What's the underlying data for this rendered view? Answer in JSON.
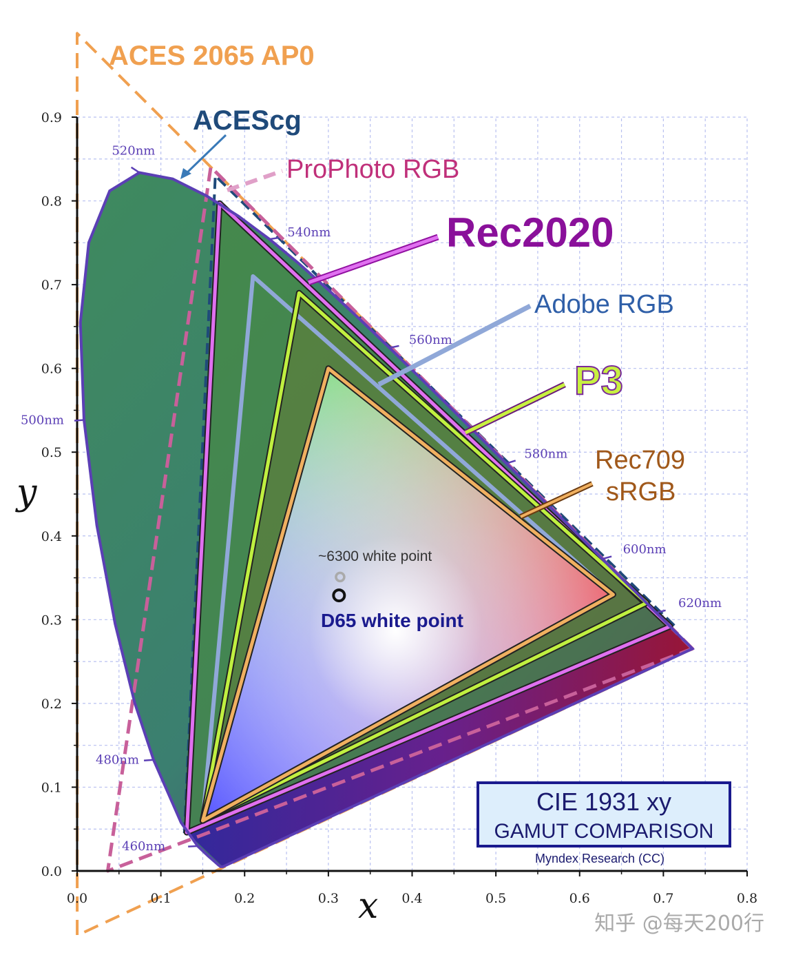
{
  "chart_data": {
    "type": "scatter",
    "title": "CIE 1931 xy",
    "subtitle": "GAMUT COMPARISON",
    "credit": "Myndex Research (CC)",
    "xlabel": "x",
    "ylabel": "y",
    "xlim": [
      0,
      0.8
    ],
    "ylim": [
      0,
      0.9
    ],
    "x_ticks": [
      "0.0",
      "0.1",
      "0.2",
      "0.3",
      "0.4",
      "0.5",
      "0.6",
      "0.7",
      "0.8"
    ],
    "y_ticks": [
      "0.0",
      "0.1",
      "0.2",
      "0.3",
      "0.4",
      "0.5",
      "0.6",
      "0.7",
      "0.8",
      "0.9"
    ],
    "grid": true,
    "spectral_locus": [
      [
        0.1741,
        0.005
      ],
      [
        0.1714,
        0.0051
      ],
      [
        0.1689,
        0.0069
      ],
      [
        0.1644,
        0.0109
      ],
      [
        0.1566,
        0.0177
      ],
      [
        0.144,
        0.0297
      ],
      [
        0.1241,
        0.0578
      ],
      [
        0.0913,
        0.1327
      ],
      [
        0.0687,
        0.2007
      ],
      [
        0.0454,
        0.295
      ],
      [
        0.0235,
        0.4127
      ],
      [
        0.0082,
        0.5384
      ],
      [
        0.0039,
        0.6548
      ],
      [
        0.0139,
        0.7502
      ],
      [
        0.0389,
        0.812
      ],
      [
        0.0743,
        0.8338
      ],
      [
        0.1142,
        0.8262
      ],
      [
        0.1547,
        0.8059
      ],
      [
        0.1929,
        0.7816
      ],
      [
        0.2296,
        0.7543
      ],
      [
        0.2658,
        0.7243
      ],
      [
        0.3016,
        0.6923
      ],
      [
        0.3373,
        0.6589
      ],
      [
        0.3731,
        0.6245
      ],
      [
        0.4087,
        0.5896
      ],
      [
        0.4441,
        0.5547
      ],
      [
        0.4788,
        0.5202
      ],
      [
        0.5125,
        0.4866
      ],
      [
        0.5448,
        0.4544
      ],
      [
        0.5752,
        0.4242
      ],
      [
        0.6029,
        0.3965
      ],
      [
        0.627,
        0.3725
      ],
      [
        0.6482,
        0.3514
      ],
      [
        0.6658,
        0.334
      ],
      [
        0.6801,
        0.3197
      ],
      [
        0.6915,
        0.3083
      ],
      [
        0.7006,
        0.2993
      ],
      [
        0.7079,
        0.292
      ],
      [
        0.714,
        0.2859
      ],
      [
        0.719,
        0.2809
      ],
      [
        0.723,
        0.277
      ],
      [
        0.726,
        0.274
      ],
      [
        0.7347,
        0.2653
      ]
    ],
    "wavelength_labels": [
      {
        "text": "460nm",
        "x": 0.144,
        "y": 0.0297
      },
      {
        "text": "480nm",
        "x": 0.0913,
        "y": 0.1327
      },
      {
        "text": "500nm",
        "x": 0.0082,
        "y": 0.5384
      },
      {
        "text": "520nm",
        "x": 0.0743,
        "y": 0.8338
      },
      {
        "text": "540nm",
        "x": 0.2296,
        "y": 0.7543
      },
      {
        "text": "560nm",
        "x": 0.3731,
        "y": 0.6245
      },
      {
        "text": "580nm",
        "x": 0.5125,
        "y": 0.4866
      },
      {
        "text": "600nm",
        "x": 0.627,
        "y": 0.3725
      },
      {
        "text": "620nm",
        "x": 0.6915,
        "y": 0.3083
      }
    ],
    "gamuts": [
      {
        "name": "ACES 2065 AP0",
        "color": "#f0a050",
        "points": [
          [
            0.7347,
            0.2653
          ],
          [
            0.0,
            1.0
          ],
          [
            0.0001,
            -0.077
          ]
        ]
      },
      {
        "name": "ACEScg",
        "color": "#1f4a7a",
        "points": [
          [
            0.713,
            0.293
          ],
          [
            0.165,
            0.83
          ],
          [
            0.128,
            0.044
          ]
        ]
      },
      {
        "name": "ProPhoto RGB",
        "color": "#c8609a",
        "points": [
          [
            0.7347,
            0.2653
          ],
          [
            0.1596,
            0.8404
          ],
          [
            0.0366,
            0.0001
          ]
        ]
      },
      {
        "name": "Rec2020",
        "color": "#e070f0",
        "points": [
          [
            0.708,
            0.292
          ],
          [
            0.17,
            0.797
          ],
          [
            0.131,
            0.046
          ]
        ]
      },
      {
        "name": "Adobe RGB",
        "color": "#90a8d8",
        "points": [
          [
            0.64,
            0.33
          ],
          [
            0.21,
            0.71
          ],
          [
            0.15,
            0.06
          ]
        ]
      },
      {
        "name": "P3",
        "color": "#c0f040",
        "points": [
          [
            0.68,
            0.32
          ],
          [
            0.265,
            0.69
          ],
          [
            0.15,
            0.06
          ]
        ]
      },
      {
        "name": "Rec709 sRGB",
        "color": "#f0b060",
        "points": [
          [
            0.64,
            0.33
          ],
          [
            0.3,
            0.6
          ],
          [
            0.15,
            0.06
          ]
        ]
      }
    ],
    "white_points": [
      {
        "name": "~6300 white point",
        "x": 0.314,
        "y": 0.351
      },
      {
        "name": "D65 white point",
        "x": 0.3127,
        "y": 0.329
      }
    ]
  },
  "labels": {
    "aces_ap0": "ACES 2065 AP0",
    "acescg": "ACEScg",
    "prophoto": "ProPhoto RGB",
    "rec2020": "Rec2020",
    "adobe": "Adobe RGB",
    "p3": "P3",
    "rec709_line1": "Rec709",
    "rec709_line2": "sRGB",
    "wp_6300": "~6300 white point",
    "wp_d65": "D65 white point"
  },
  "colors": {
    "locus_fill": "#3f8a5e",
    "locus_stroke": "#5b3fb5",
    "grid": "#b8c0f0",
    "aces_ap0": "#f0a050",
    "acescg": "#1f4a7a",
    "prophoto": "#c8609a",
    "rec2020": "#9010a0",
    "adobe": "#2f5fa8",
    "p3": "#c8f040",
    "rec709": "#a0581a",
    "title_box_bg": "#ddeefc",
    "title_box_border": "#1a1a8e"
  },
  "watermark": "知乎 @每天200行"
}
